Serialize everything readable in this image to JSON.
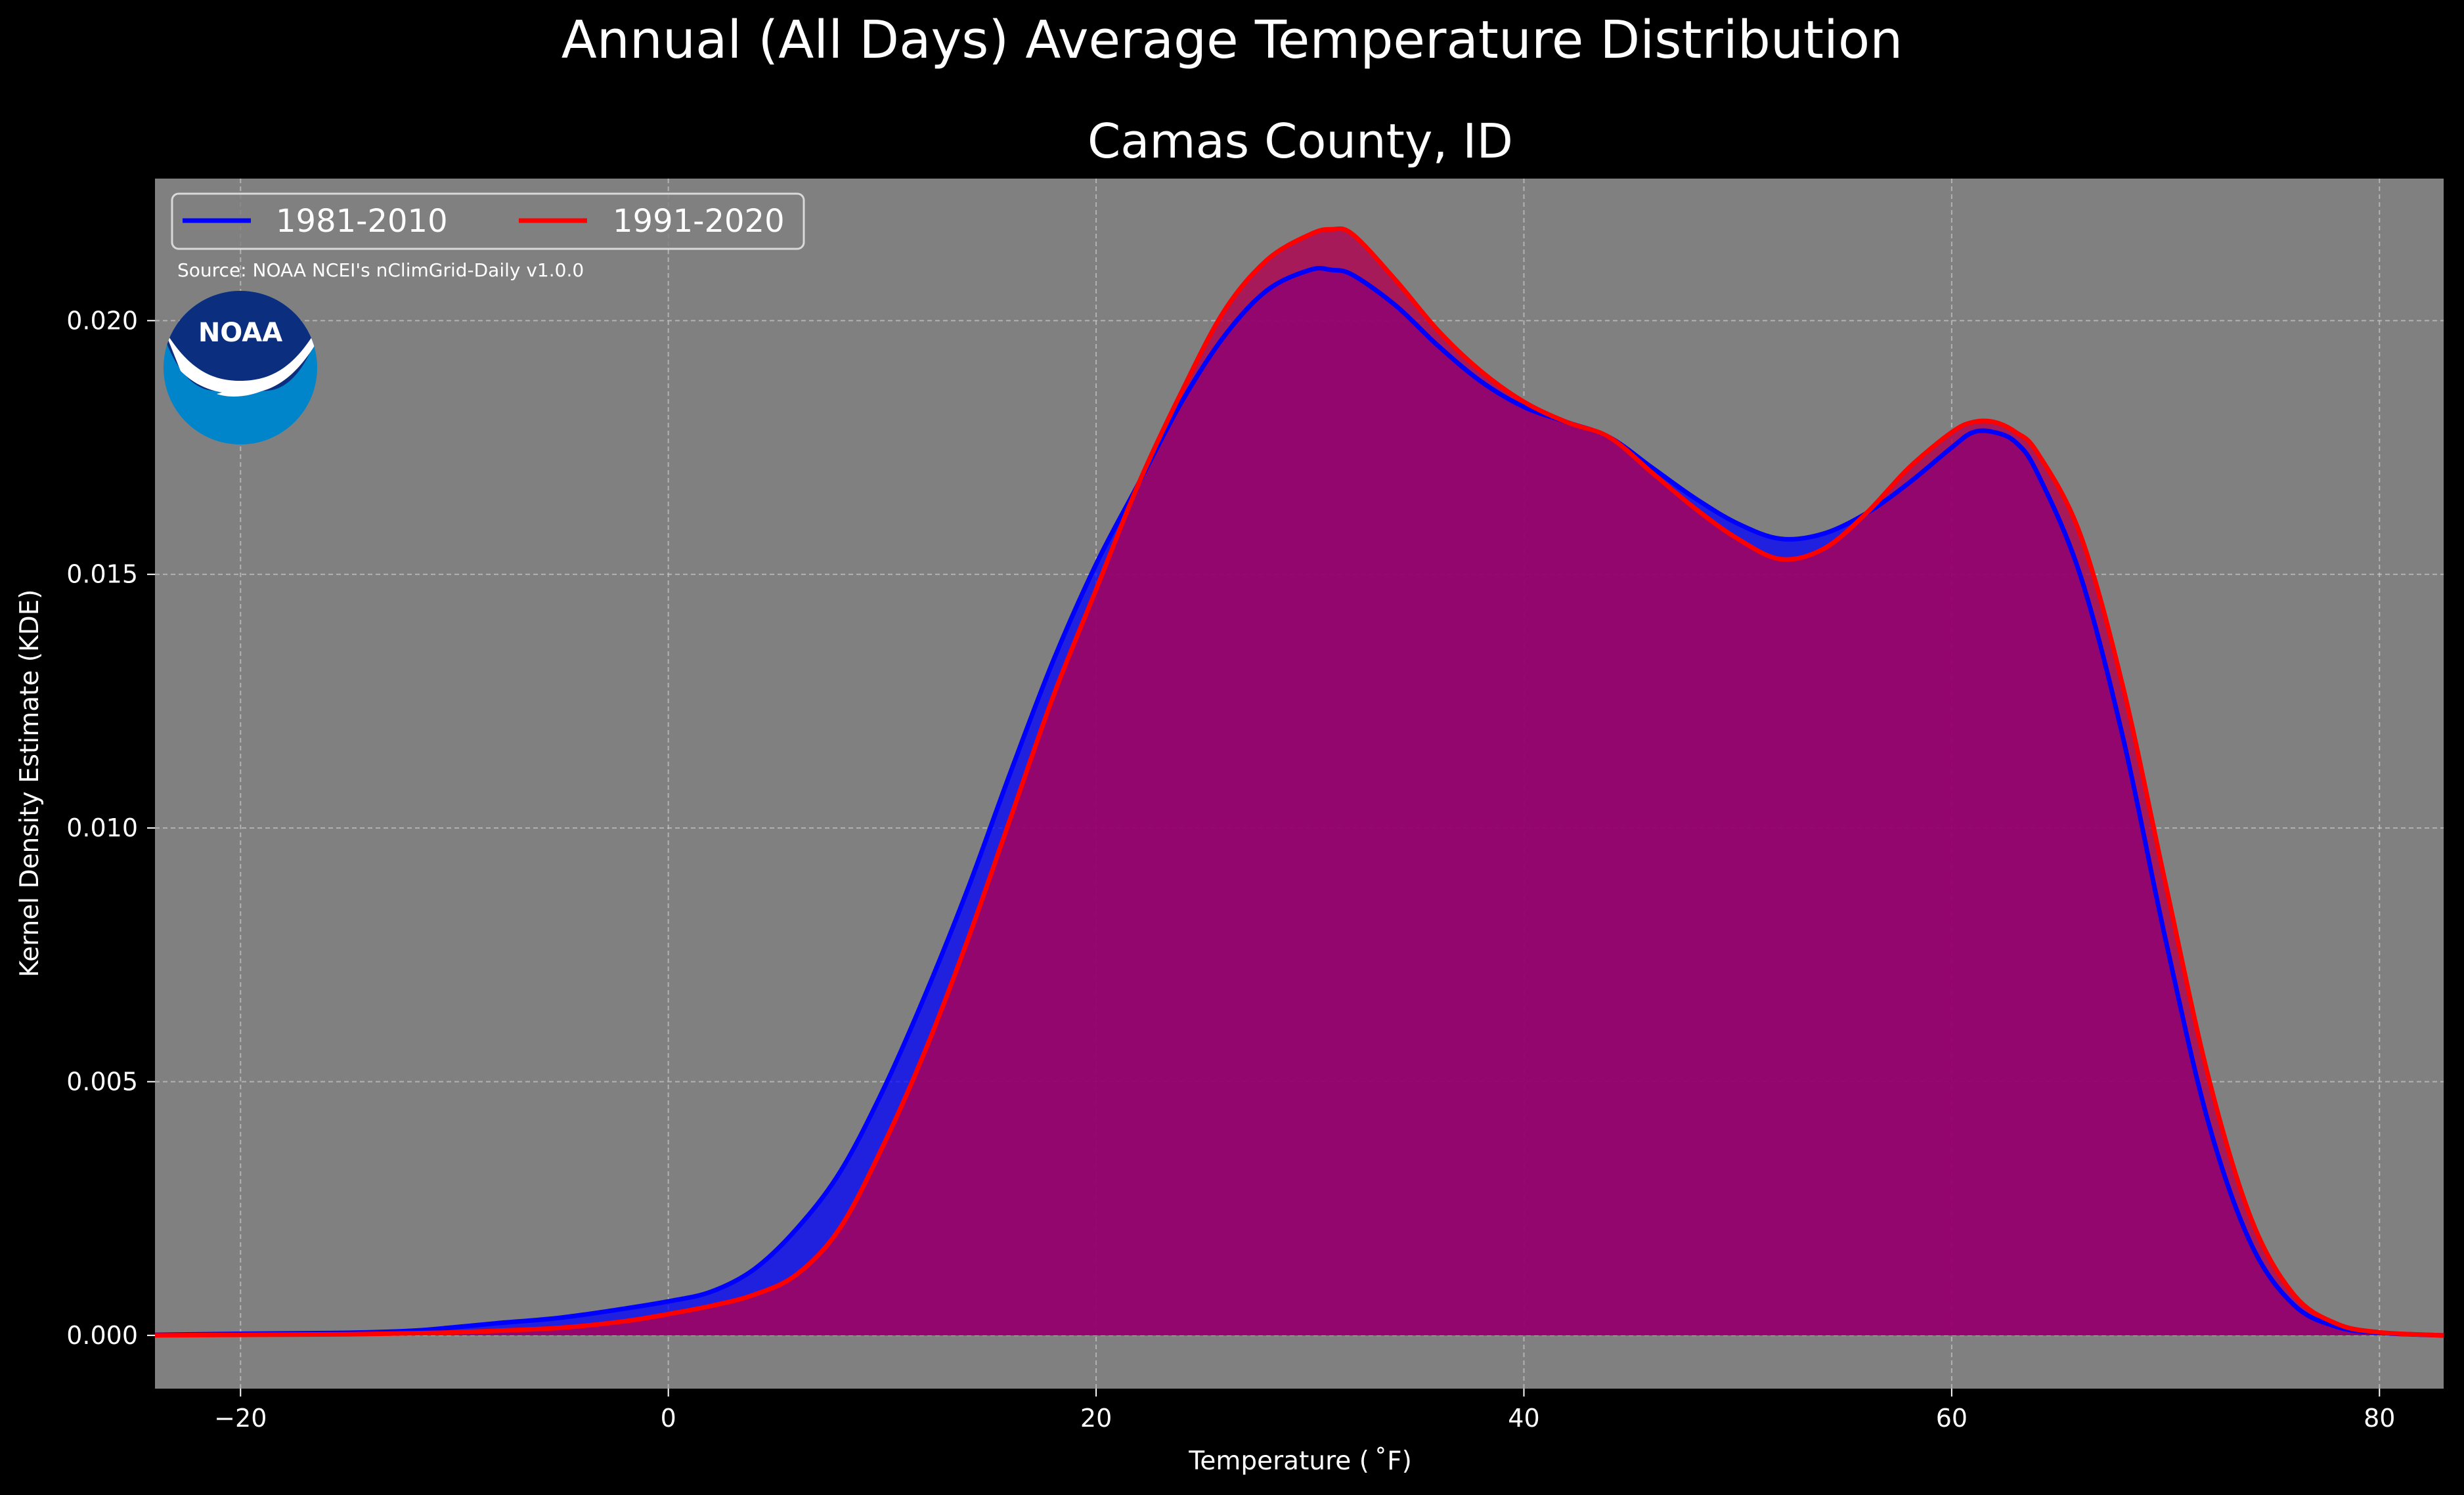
{
  "chart_data": {
    "type": "area",
    "title": "Annual (All Days) Average Temperature Distribution",
    "subtitle": "Camas County, ID",
    "xlabel": "Temperature ($^\\circ$F)",
    "xlabel_display": "Temperature ( ˚F)",
    "ylabel": "Kernel Density Estimate (KDE)",
    "xlim": [
      -24,
      83
    ],
    "ylim": [
      -0.00105,
      0.0228
    ],
    "xticks": [
      -20,
      0,
      20,
      40,
      60,
      80
    ],
    "xtick_labels": [
      "−20",
      "0",
      "20",
      "40",
      "60",
      "80"
    ],
    "yticks": [
      0.0,
      0.005,
      0.01,
      0.015,
      0.02
    ],
    "ytick_labels": [
      "0.000",
      "0.005",
      "0.010",
      "0.015",
      "0.020"
    ],
    "grid": true,
    "legend_position": "top-left",
    "source_note": "Source: NOAA NCEI's nClimGrid-Daily v1.0.0",
    "logo_text": "NOAA",
    "colors": {
      "figure_background": "#000000",
      "axes_background": "#808080",
      "series_1981": "#0000ff",
      "series_1991": "#ff0000",
      "fill_1981": "#0000ff",
      "fill_1991": "#b00050",
      "noaa_dark_blue": "#0b2e7e",
      "noaa_light_blue": "#0085ca"
    },
    "series": [
      {
        "name": "1981-2010",
        "color": "#0000ff",
        "x": [
          -24,
          -20,
          -15,
          -12,
          -10,
          -8,
          -5,
          -2,
          0,
          2,
          4,
          6,
          8,
          10,
          12,
          14,
          16,
          18,
          20,
          22,
          24,
          26,
          28,
          30,
          31,
          32,
          34,
          36,
          38,
          40,
          42,
          44,
          46,
          48,
          50,
          52,
          54,
          56,
          58,
          60,
          61,
          62,
          63,
          64,
          66,
          68,
          70,
          72,
          74,
          76,
          78,
          80,
          83
        ],
        "y": [
          1e-05,
          3e-05,
          5e-05,
          9e-05,
          0.00016,
          0.00024,
          0.00035,
          0.00053,
          0.00067,
          0.00086,
          0.0013,
          0.0021,
          0.0032,
          0.0048,
          0.0067,
          0.0088,
          0.0111,
          0.0133,
          0.0152,
          0.0168,
          0.0184,
          0.0197,
          0.0206,
          0.021,
          0.021,
          0.0209,
          0.0203,
          0.0195,
          0.0188,
          0.0183,
          0.018,
          0.0177,
          0.0171,
          0.0165,
          0.016,
          0.0157,
          0.0158,
          0.0162,
          0.0168,
          0.0175,
          0.0178,
          0.0178,
          0.0176,
          0.017,
          0.015,
          0.0118,
          0.0078,
          0.0042,
          0.0018,
          0.0006,
          0.00017,
          5e-05,
          0.0
        ]
      },
      {
        "name": "1991-2020",
        "color": "#ff0000",
        "x": [
          -24,
          -20,
          -15,
          -12,
          -10,
          -8,
          -5,
          -2,
          0,
          2,
          4,
          6,
          8,
          10,
          12,
          14,
          16,
          18,
          20,
          22,
          24,
          26,
          28,
          30,
          31,
          32,
          34,
          36,
          38,
          40,
          42,
          44,
          46,
          48,
          50,
          52,
          54,
          56,
          58,
          60,
          61,
          62,
          63,
          64,
          66,
          68,
          70,
          72,
          74,
          76,
          78,
          80,
          83
        ],
        "y": [
          0.0,
          1e-05,
          2e-05,
          4e-05,
          6e-05,
          9e-05,
          0.00015,
          0.00028,
          0.00042,
          0.00058,
          0.0008,
          0.0012,
          0.0021,
          0.0037,
          0.0056,
          0.0078,
          0.0102,
          0.0126,
          0.0147,
          0.0168,
          0.0186,
          0.0202,
          0.0212,
          0.0217,
          0.0218,
          0.0217,
          0.0208,
          0.0198,
          0.019,
          0.0184,
          0.018,
          0.0177,
          0.017,
          0.0163,
          0.0157,
          0.0153,
          0.0155,
          0.0162,
          0.0171,
          0.0178,
          0.018,
          0.018,
          0.0178,
          0.0174,
          0.0158,
          0.0128,
          0.0089,
          0.0051,
          0.0023,
          0.0008,
          0.00023,
          6e-05,
          0.0
        ]
      }
    ]
  }
}
